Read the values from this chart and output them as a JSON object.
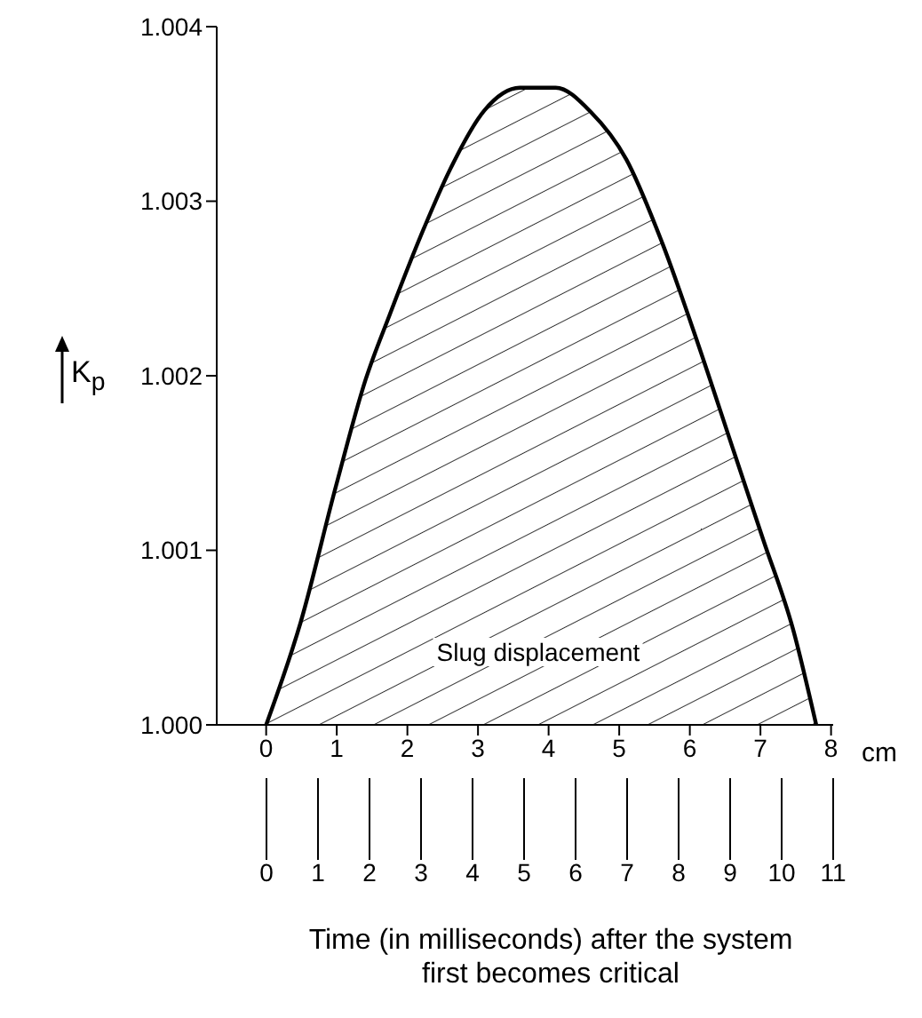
{
  "chart_data": {
    "type": "area",
    "color": "#000000",
    "x": [
      0,
      0.49,
      0.99,
      1.41,
      1.75,
      2.25,
      2.59,
      3.09,
      3.59,
      4.1,
      4.6,
      5.1,
      5.61,
      6.11,
      6.62,
      7.04,
      7.46,
      7.79
    ],
    "values": [
      1.0,
      1.00059,
      1.00137,
      1.00198,
      1.00235,
      1.00286,
      1.00317,
      1.00352,
      1.00365,
      1.00365,
      1.00351,
      1.00324,
      1.00276,
      1.00219,
      1.00157,
      1.00106,
      1.00055,
      1.0
    ],
    "xlabel": "cm",
    "x2label": "Time (in milliseconds) after the system first becomes critical",
    "ylabel": "K$_{p}$",
    "xlim": [
      -0.7,
      8.03
    ],
    "xticks": [
      0,
      1,
      2,
      3,
      4,
      5,
      6,
      7,
      8
    ],
    "x2lim": [
      0,
      11
    ],
    "x2ticks": [
      0,
      1,
      2,
      3,
      4,
      5,
      6,
      7,
      8,
      9,
      10,
      11
    ],
    "ylim": [
      1.0,
      1.004
    ],
    "yticks": [
      {
        "value": 1.0,
        "label": "1.000"
      },
      {
        "value": 1.001,
        "label": "1.001"
      },
      {
        "value": 1.002,
        "label": "1.002"
      },
      {
        "value": 1.003,
        "label": "1.003"
      },
      {
        "value": 1.004,
        "label": "1.004"
      }
    ],
    "annotations": [
      "Slug displacement"
    ],
    "grid": false,
    "legend": false
  }
}
